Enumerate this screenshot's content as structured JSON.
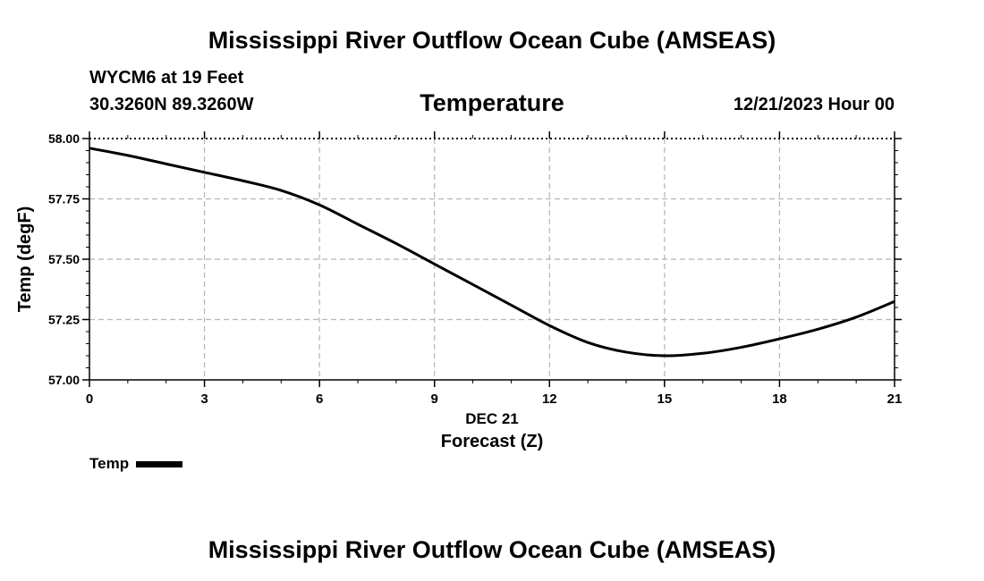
{
  "header": {
    "title": "Mississippi River Outflow Ocean Cube (AMSEAS)",
    "station": "WYCM6 at 19 Feet",
    "coords": "30.3260N  89.3260W",
    "subtitle": "Temperature",
    "datetime": "12/21/2023 Hour 00"
  },
  "footer": {
    "title": "Mississippi River Outflow Ocean Cube (AMSEAS)"
  },
  "legend": {
    "label": "Temp"
  },
  "colors": {
    "line": "#000000",
    "grid": "#b4b4b4",
    "background": "#ffffff"
  },
  "chart_data": {
    "type": "line",
    "title": "Temperature",
    "xlabel": "Forecast (Z)",
    "xlabel_date": "DEC 21",
    "ylabel": "Temp (degF)",
    "xlim": [
      0,
      21
    ],
    "ylim": [
      57.0,
      58.0
    ],
    "xticks": [
      0,
      3,
      6,
      9,
      12,
      15,
      18,
      21
    ],
    "xtick_labels": [
      "0",
      "3",
      "6",
      "9",
      "12",
      "15",
      "18",
      "21"
    ],
    "yticks": [
      57.0,
      57.25,
      57.5,
      57.75,
      58.0
    ],
    "ytick_labels": [
      "57.00",
      "57.25",
      "57.50",
      "57.75",
      "58.00"
    ],
    "grid": true,
    "series": [
      {
        "name": "Temp",
        "x": [
          0,
          1,
          2,
          3,
          4,
          5,
          6,
          7,
          8,
          9,
          10,
          11,
          12,
          13,
          14,
          15,
          16,
          17,
          18,
          19,
          20,
          21
        ],
        "values": [
          57.96,
          57.93,
          57.895,
          57.86,
          57.825,
          57.785,
          57.725,
          57.645,
          57.565,
          57.48,
          57.395,
          57.31,
          57.225,
          57.155,
          57.115,
          57.1,
          57.11,
          57.135,
          57.17,
          57.21,
          57.26,
          57.325
        ]
      }
    ]
  }
}
